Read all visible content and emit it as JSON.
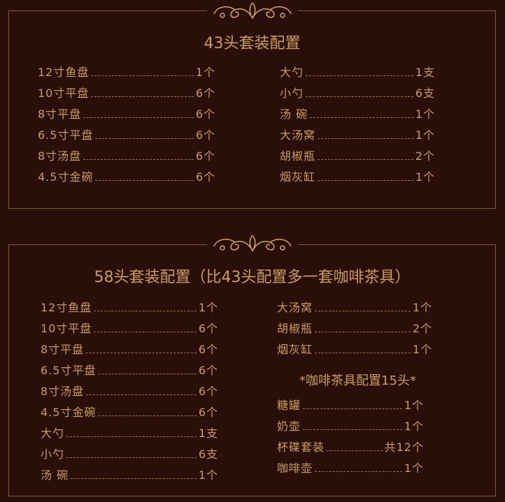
{
  "colors": {
    "background": "#2a0e09",
    "text": "#c99d62",
    "border": "#7d5a3c"
  },
  "ornament_icon": "scroll-flourish-icon",
  "set43": {
    "title": "43头套装配置",
    "left": [
      {
        "label": "12寸鱼盘",
        "value": "1个"
      },
      {
        "label": "10寸平盘",
        "value": "6个"
      },
      {
        "label": "8寸平盘",
        "value": "6个"
      },
      {
        "label": "6.5寸平盘",
        "value": "6个"
      },
      {
        "label": "8寸汤盘",
        "value": "6个"
      },
      {
        "label": "4.5寸金碗",
        "value": "6个"
      }
    ],
    "right": [
      {
        "label": "大勺",
        "value": "1支"
      },
      {
        "label": "小勺",
        "value": "6支"
      },
      {
        "label": "汤 碗",
        "value": "1个"
      },
      {
        "label": "大汤窝",
        "value": "1个"
      },
      {
        "label": "胡椒瓶",
        "value": "2个"
      },
      {
        "label": "烟灰缸",
        "value": "1个"
      }
    ]
  },
  "set58": {
    "title": "58头套装配置（比43头配置多一套咖啡茶具）",
    "left": [
      {
        "label": "12寸鱼盘",
        "value": "1个"
      },
      {
        "label": "10寸平盘",
        "value": "6个"
      },
      {
        "label": "8寸平盘",
        "value": "6个"
      },
      {
        "label": "6.5寸平盘",
        "value": "6个"
      },
      {
        "label": "8寸汤盘",
        "value": "6个"
      },
      {
        "label": "4.5寸金碗",
        "value": "6个"
      },
      {
        "label": "大勺",
        "value": "1支"
      },
      {
        "label": "小勺",
        "value": "6支"
      },
      {
        "label": "汤 碗",
        "value": "1个"
      }
    ],
    "right": [
      {
        "label": "大汤窝",
        "value": "1个"
      },
      {
        "label": "胡椒瓶",
        "value": "2个"
      },
      {
        "label": "烟灰缸",
        "value": "1个"
      }
    ],
    "coffee_title": "*咖啡茶具配置15头*",
    "coffee": [
      {
        "label": "糖罐",
        "value": "1个"
      },
      {
        "label": "奶壶",
        "value": "1个"
      },
      {
        "label": "杯碟套装",
        "value": "共12个"
      },
      {
        "label": "咖啡壶",
        "value": "1个"
      }
    ]
  }
}
